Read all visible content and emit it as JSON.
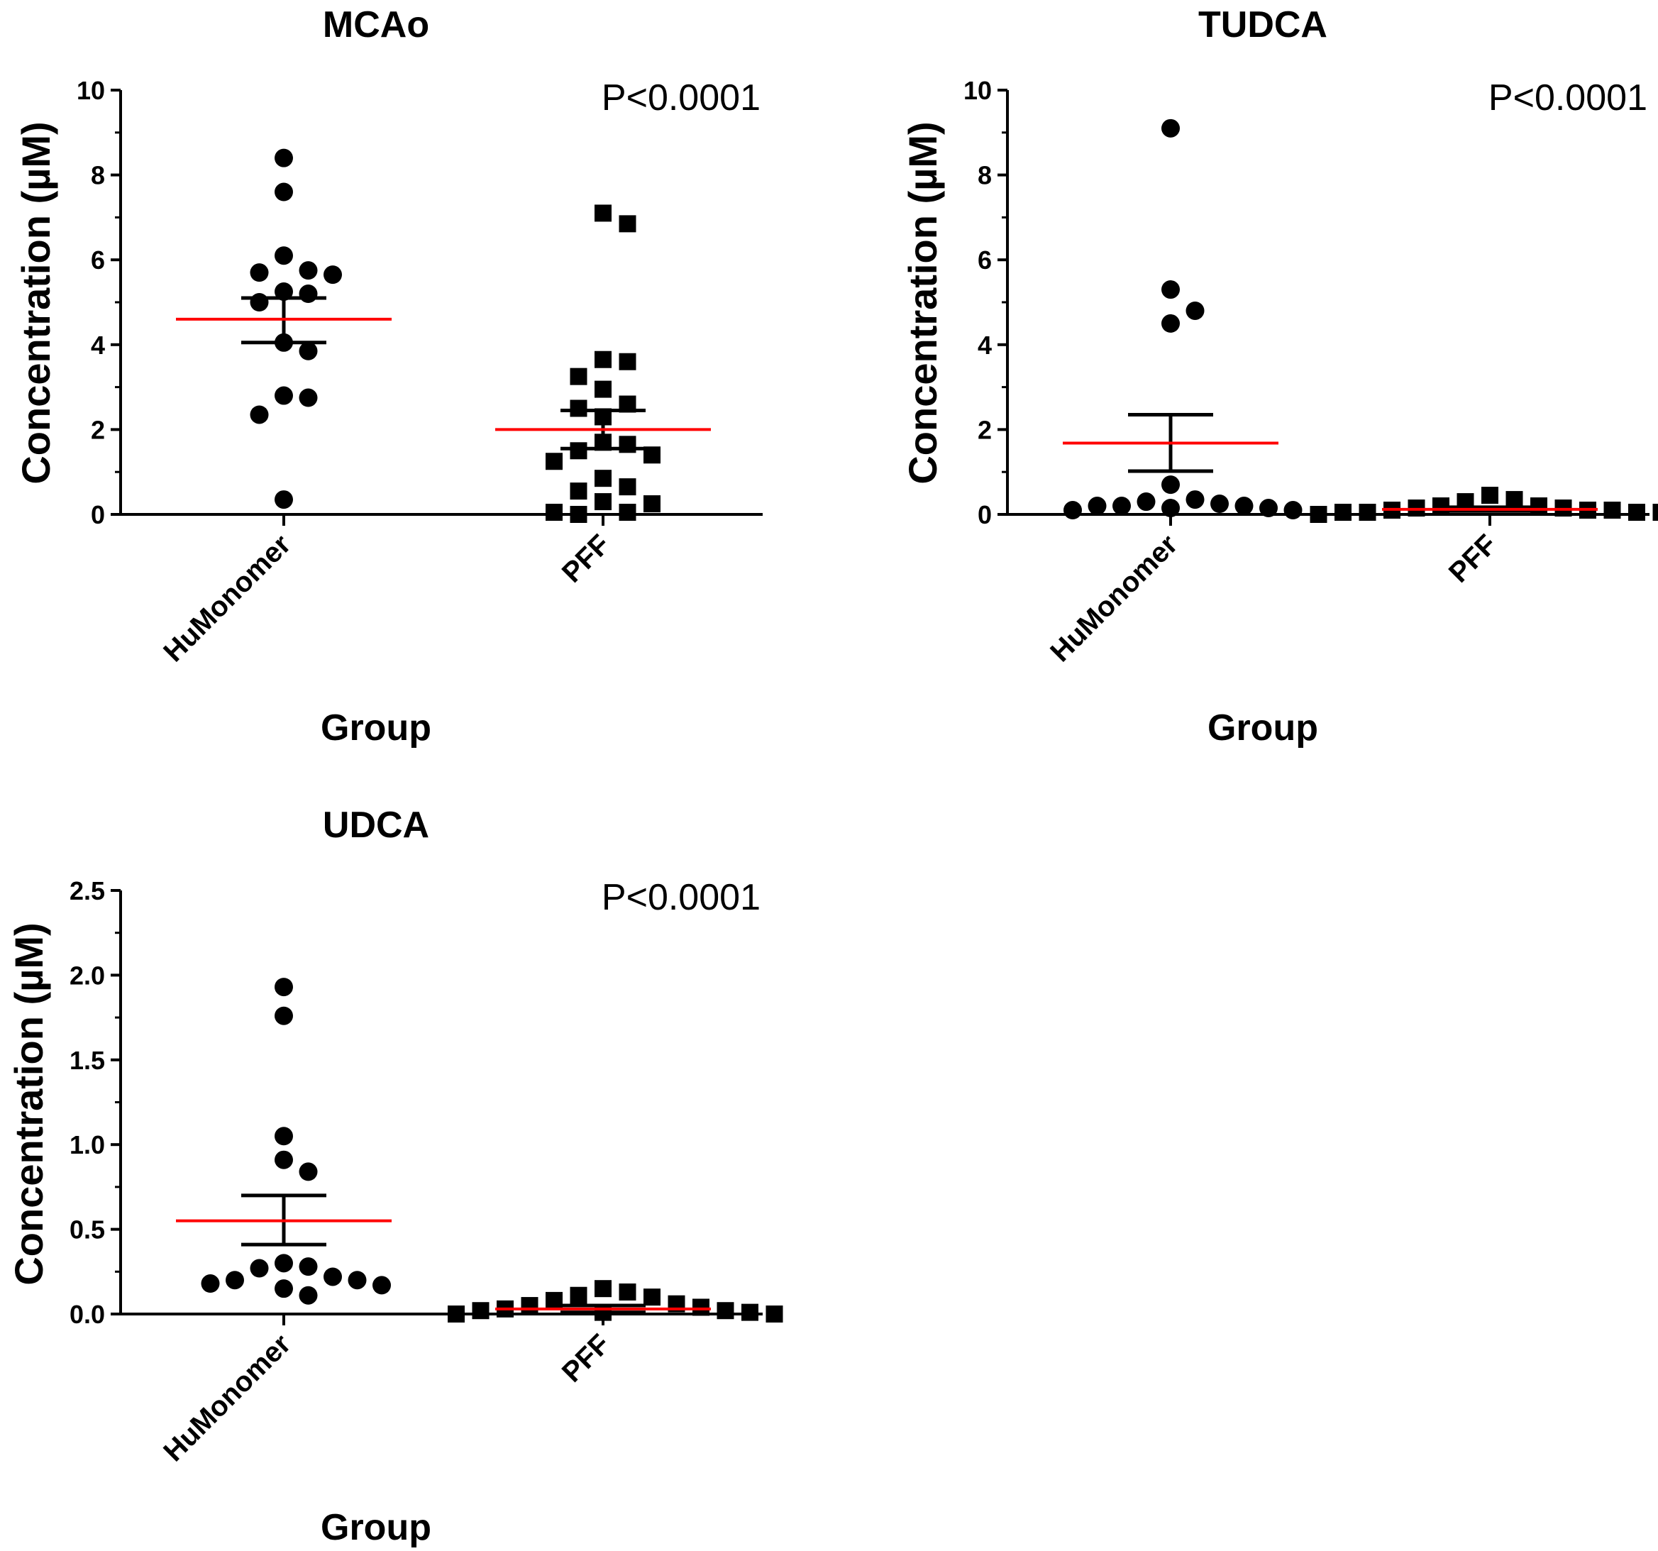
{
  "chart_data": [
    {
      "type": "scatter",
      "title": "MCAo",
      "ylabel": "Concentration (µM)",
      "xlabel": "Group",
      "categories": [
        "HuMonomer",
        "PFF"
      ],
      "ylim": [
        0,
        10
      ],
      "yticks": [
        "0",
        "2",
        "4",
        "6",
        "8",
        "10"
      ],
      "annotation": "P<0.0001",
      "series": [
        {
          "name": "HuMonomer",
          "marker": "circle",
          "values": [
            8.4,
            7.6,
            6.1,
            5.75,
            5.7,
            5.65,
            5.25,
            5.2,
            5.0,
            4.05,
            3.85,
            2.8,
            2.75,
            2.35,
            0.35
          ],
          "mean": 4.6,
          "sem_low": 4.05,
          "sem_high": 5.1
        },
        {
          "name": "PFF",
          "marker": "square",
          "values": [
            7.1,
            6.85,
            3.65,
            3.6,
            3.25,
            2.95,
            2.6,
            2.5,
            2.3,
            1.7,
            1.65,
            1.5,
            1.4,
            1.25,
            0.85,
            0.65,
            0.55,
            0.3,
            0.25,
            0.05,
            0.05,
            0.0
          ],
          "mean": 2.0,
          "sem_low": 1.55,
          "sem_high": 2.45
        }
      ]
    },
    {
      "type": "scatter",
      "title": "TUDCA",
      "ylabel": "Concentration (µM)",
      "xlabel": "Group",
      "categories": [
        "HuMonomer",
        "PFF"
      ],
      "ylim": [
        0,
        10
      ],
      "yticks": [
        "0",
        "2",
        "4",
        "6",
        "8",
        "10"
      ],
      "annotation": "P<0.0001",
      "series": [
        {
          "name": "HuMonomer",
          "marker": "circle",
          "values": [
            9.1,
            5.3,
            4.8,
            4.5,
            0.7,
            0.35,
            0.3,
            0.25,
            0.2,
            0.2,
            0.2,
            0.15,
            0.15,
            0.1,
            0.1
          ],
          "mean": 1.68,
          "sem_low": 1.02,
          "sem_high": 2.35
        },
        {
          "name": "PFF",
          "marker": "square",
          "values": [
            0.45,
            0.35,
            0.3,
            0.2,
            0.2,
            0.15,
            0.15,
            0.1,
            0.1,
            0.1,
            0.05,
            0.05,
            0.05,
            0.05,
            0.0,
            0.0
          ],
          "mean": 0.12,
          "sem_low": 0.08,
          "sem_high": 0.17
        }
      ]
    },
    {
      "type": "scatter",
      "title": "UDCA",
      "ylabel": "Concentration (µM)",
      "xlabel": "Group",
      "categories": [
        "HuMonomer",
        "PFF"
      ],
      "ylim": [
        0,
        2.5
      ],
      "yticks": [
        "0.0",
        "0.5",
        "1.0",
        "1.5",
        "2.0",
        "2.5"
      ],
      "annotation": "P<0.0001",
      "series": [
        {
          "name": "HuMonomer",
          "marker": "circle",
          "values": [
            1.93,
            1.76,
            1.05,
            0.91,
            0.84,
            0.3,
            0.28,
            0.27,
            0.22,
            0.2,
            0.2,
            0.18,
            0.17,
            0.15,
            0.11
          ],
          "mean": 0.55,
          "sem_low": 0.41,
          "sem_high": 0.7
        },
        {
          "name": "PFF",
          "marker": "square",
          "values": [
            0.15,
            0.13,
            0.11,
            0.1,
            0.08,
            0.06,
            0.05,
            0.04,
            0.03,
            0.02,
            0.02,
            0.01,
            0.01,
            0.0,
            0.0
          ],
          "mean": 0.03,
          "sem_low": 0.01,
          "sem_high": 0.05
        }
      ]
    }
  ],
  "colors": {
    "points": "#000000",
    "mean_line": "#ff0000",
    "axis": "#000000"
  }
}
